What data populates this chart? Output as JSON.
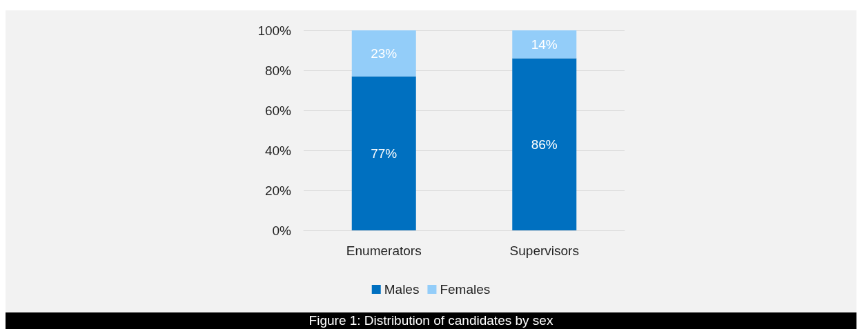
{
  "chart_data": {
    "type": "bar",
    "stacked": true,
    "categories": [
      "Enumerators",
      "Supervisors"
    ],
    "series": [
      {
        "name": "Males",
        "color": "#0070c0",
        "values": [
          77,
          86
        ],
        "value_labels": [
          "77%",
          "86%"
        ]
      },
      {
        "name": "Females",
        "color": "#93cdf9",
        "values": [
          23,
          14
        ],
        "value_labels": [
          "23%",
          "14%"
        ]
      }
    ],
    "ylim": [
      0,
      100
    ],
    "yticks": [
      {
        "value": 0,
        "label": "0%"
      },
      {
        "value": 20,
        "label": "20%"
      },
      {
        "value": 40,
        "label": "40%"
      },
      {
        "value": 60,
        "label": "60%"
      },
      {
        "value": 80,
        "label": "80%"
      },
      {
        "value": 100,
        "label": "100%"
      }
    ],
    "grid": "y",
    "legend": "bottom",
    "annotations": [
      "Figure 1: Distribution of candidates by sex"
    ]
  }
}
